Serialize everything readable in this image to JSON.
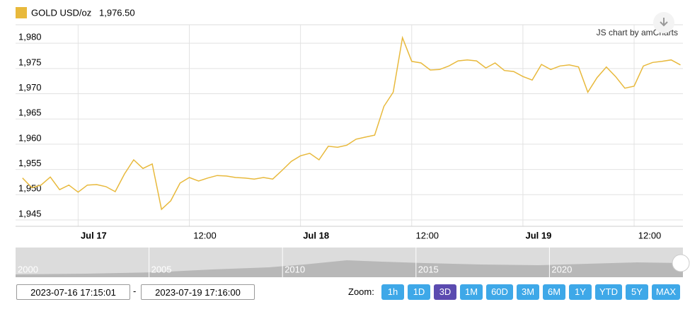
{
  "chart_data": {
    "type": "line",
    "series": [
      {
        "name": "GOLD USD/oz",
        "color": "#e8b93c",
        "current": {
          "value": 1976.5,
          "label": "1,976.50"
        },
        "x": [
          "2023-07-16 18:00",
          "2023-07-16 19:00",
          "2023-07-16 20:00",
          "2023-07-16 21:00",
          "2023-07-16 22:00",
          "2023-07-16 23:00",
          "2023-07-17 00:00",
          "2023-07-17 01:00",
          "2023-07-17 02:00",
          "2023-07-17 03:00",
          "2023-07-17 04:00",
          "2023-07-17 05:00",
          "2023-07-17 06:00",
          "2023-07-17 07:00",
          "2023-07-17 08:00",
          "2023-07-17 09:00",
          "2023-07-17 10:00",
          "2023-07-17 11:00",
          "2023-07-17 12:00",
          "2023-07-17 13:00",
          "2023-07-17 14:00",
          "2023-07-17 15:00",
          "2023-07-17 16:00",
          "2023-07-17 17:00",
          "2023-07-17 18:00",
          "2023-07-17 19:00",
          "2023-07-17 20:00",
          "2023-07-17 21:00",
          "2023-07-17 22:00",
          "2023-07-17 23:00",
          "2023-07-18 00:00",
          "2023-07-18 01:00",
          "2023-07-18 02:00",
          "2023-07-18 03:00",
          "2023-07-18 04:00",
          "2023-07-18 05:00",
          "2023-07-18 06:00",
          "2023-07-18 07:00",
          "2023-07-18 08:00",
          "2023-07-18 09:00",
          "2023-07-18 10:00",
          "2023-07-18 11:00",
          "2023-07-18 12:00",
          "2023-07-18 13:00",
          "2023-07-18 14:00",
          "2023-07-18 15:00",
          "2023-07-18 16:00",
          "2023-07-18 17:00",
          "2023-07-18 18:00",
          "2023-07-18 19:00",
          "2023-07-18 20:00",
          "2023-07-18 21:00",
          "2023-07-18 22:00",
          "2023-07-18 23:00",
          "2023-07-19 00:00",
          "2023-07-19 01:00",
          "2023-07-19 02:00",
          "2023-07-19 03:00",
          "2023-07-19 04:00",
          "2023-07-19 05:00",
          "2023-07-19 06:00",
          "2023-07-19 07:00",
          "2023-07-19 08:00",
          "2023-07-19 09:00",
          "2023-07-19 10:00",
          "2023-07-19 11:00",
          "2023-07-19 12:00",
          "2023-07-19 13:00",
          "2023-07-19 14:00",
          "2023-07-19 15:00",
          "2023-07-19 16:00",
          "2023-07-19 17:00"
        ],
        "values": [
          1953.3,
          1951.4,
          1951.9,
          1953.5,
          1951.0,
          1951.9,
          1950.5,
          1951.9,
          1952.0,
          1951.6,
          1950.6,
          1954.1,
          1956.9,
          1955.2,
          1956.1,
          1947.1,
          1948.8,
          1952.3,
          1953.4,
          1952.7,
          1953.3,
          1953.8,
          1953.7,
          1953.4,
          1953.3,
          1953.1,
          1953.4,
          1953.1,
          1954.8,
          1956.6,
          1957.7,
          1958.2,
          1956.9,
          1959.6,
          1959.4,
          1959.8,
          1961.0,
          1961.4,
          1961.8,
          1967.5,
          1970.3,
          1981.1,
          1976.4,
          1976.1,
          1974.7,
          1974.8,
          1975.5,
          1976.5,
          1976.7,
          1976.5,
          1975.1,
          1976.1,
          1974.6,
          1974.4,
          1973.4,
          1972.7,
          1975.8,
          1974.8,
          1975.5,
          1975.7,
          1975.3,
          1970.3,
          1973.2,
          1975.3,
          1973.4,
          1971.1,
          1971.5,
          1975.5,
          1976.2,
          1976.4,
          1976.7,
          1975.7
        ]
      }
    ],
    "xlim": [
      "2023-07-16 17:15:01",
      "2023-07-19 17:16:00"
    ],
    "xticks": [
      {
        "value": "2023-07-17 00:00",
        "label": "Jul 17"
      },
      {
        "value": "2023-07-17 12:00",
        "label": "12:00"
      },
      {
        "value": "2023-07-18 00:00",
        "label": "Jul 18"
      },
      {
        "value": "2023-07-18 12:00",
        "label": "12:00"
      },
      {
        "value": "2023-07-19 00:00",
        "label": "Jul 19"
      },
      {
        "value": "2023-07-19 12:00",
        "label": "12:00"
      }
    ],
    "ylim": [
      1943.74,
      1983.66
    ],
    "yticks": [
      {
        "value": 1945,
        "label": "1,945"
      },
      {
        "value": 1950,
        "label": "1,950"
      },
      {
        "value": 1955,
        "label": "1,955"
      },
      {
        "value": 1960,
        "label": "1,960"
      },
      {
        "value": 1965,
        "label": "1,965"
      },
      {
        "value": 1970,
        "label": "1,970"
      },
      {
        "value": 1975,
        "label": "1,975"
      },
      {
        "value": 1980,
        "label": "1,980"
      }
    ],
    "grid": true,
    "credit": "JS chart by amCharts",
    "navigator": {
      "labels": [
        "2000",
        "2005",
        "2010",
        "2015",
        "2020"
      ]
    },
    "range": {
      "from": "2023-07-16 17:15:01",
      "separator": "-",
      "to": "2023-07-19 17:16:00"
    },
    "zoom": {
      "label": "Zoom:",
      "buttons": [
        "1h",
        "1D",
        "3D",
        "1M",
        "60D",
        "3M",
        "6M",
        "1Y",
        "YTD",
        "5Y",
        "MAX"
      ],
      "selected": "3D"
    }
  }
}
